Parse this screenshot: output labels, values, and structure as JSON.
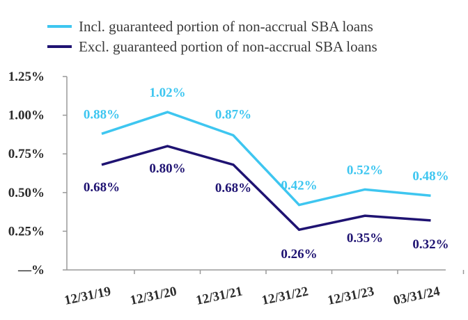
{
  "chart_data": {
    "type": "line",
    "title": "",
    "xlabel": "",
    "ylabel": "",
    "categories": [
      "12/31/19",
      "12/31/20",
      "12/31/21",
      "12/31/22",
      "12/31/23",
      "03/31/24"
    ],
    "yticks": [
      "—%",
      "0.25%",
      "0.50%",
      "0.75%",
      "1.00%",
      "1.25%"
    ],
    "ylim": [
      0,
      1.25
    ],
    "legend_position": "top-center",
    "series": [
      {
        "name": "Incl. guaranteed portion of non-accrual SBA loans",
        "color": "#3ec6f0",
        "values": [
          0.88,
          1.02,
          0.87,
          0.42,
          0.52,
          0.48
        ],
        "labels": [
          "0.88%",
          "1.02%",
          "0.87%",
          "0.42%",
          "0.52%",
          "0.48%"
        ]
      },
      {
        "name": "Excl. guaranteed portion of non-accrual SBA loans",
        "color": "#1f1372",
        "values": [
          0.68,
          0.8,
          0.68,
          0.26,
          0.35,
          0.32
        ],
        "labels": [
          "0.68%",
          "0.80%",
          "0.68%",
          "0.26%",
          "0.35%",
          "0.32%"
        ]
      }
    ]
  }
}
